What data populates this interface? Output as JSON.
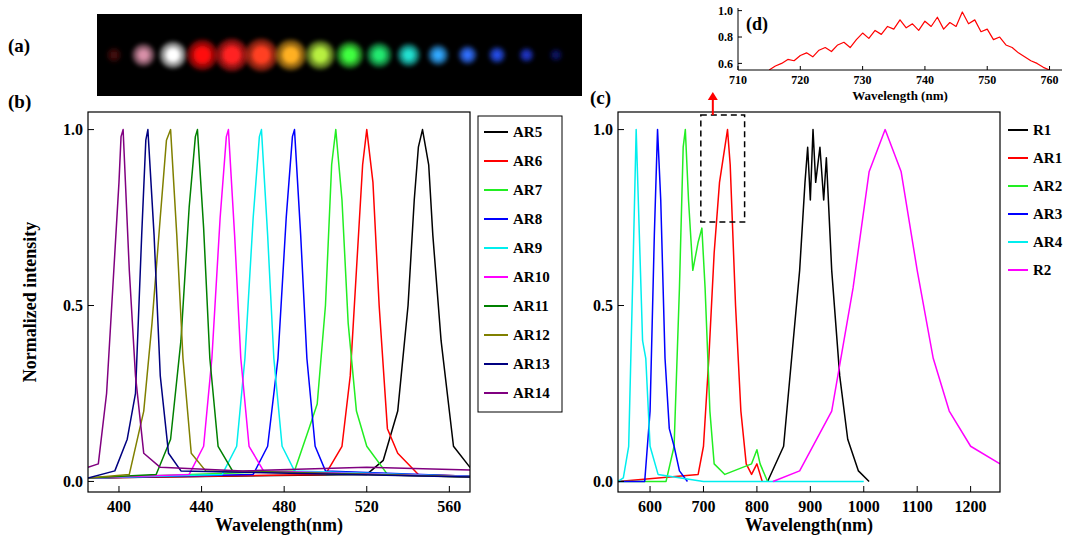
{
  "image": {
    "panel_label": "(a)",
    "colors": [
      "#4a1010",
      "#d890a8",
      "#ffffff",
      "#ff1010",
      "#ff2020",
      "#ff4020",
      "#ffb020",
      "#b8f040",
      "#40ff40",
      "#20e870",
      "#20e0d0",
      "#30a8ff",
      "#3070ff",
      "#2850f0",
      "#2038d0",
      "#101870"
    ]
  },
  "chart_data": [
    {
      "type": "line",
      "panel_label": "(b)",
      "xlabel": "Wavelength(nm)",
      "ylabel": "Normalized intensity",
      "xlim": [
        385,
        570
      ],
      "xticks": [
        400,
        440,
        480,
        520,
        560
      ],
      "ylim": [
        -0.03,
        1.05
      ],
      "yticks": [
        {
          "value": 0,
          "label": "0.0"
        },
        {
          "value": 0.5,
          "label": "0.5"
        },
        {
          "value": 1,
          "label": "1.0"
        }
      ],
      "legend": "right",
      "series": [
        {
          "name": "AR5",
          "color": "#000000",
          "x": [
            385,
            520,
            528,
            535,
            540,
            543,
            545,
            547,
            550,
            552,
            556,
            562,
            570,
            590
          ],
          "values": [
            0.01,
            0.02,
            0.06,
            0.2,
            0.5,
            0.8,
            0.95,
            1.0,
            0.9,
            0.7,
            0.4,
            0.1,
            0.04,
            0.01
          ]
        },
        {
          "name": "AR6",
          "color": "#ff0000",
          "x": [
            385,
            500,
            508,
            512,
            515,
            518,
            520,
            523,
            526,
            530,
            535,
            545,
            590
          ],
          "values": [
            0.01,
            0.02,
            0.1,
            0.3,
            0.6,
            0.9,
            1.0,
            0.85,
            0.5,
            0.15,
            0.08,
            0.02,
            0.01
          ]
        },
        {
          "name": "AR7",
          "color": "#22ee22",
          "x": [
            385,
            485,
            492,
            496,
            500,
            503,
            505,
            508,
            511,
            515,
            520,
            530,
            590
          ],
          "values": [
            0.01,
            0.03,
            0.15,
            0.22,
            0.5,
            0.9,
            1.0,
            0.8,
            0.45,
            0.2,
            0.1,
            0.02,
            0.01
          ]
        },
        {
          "name": "AR8",
          "color": "#0000ff",
          "x": [
            385,
            465,
            472,
            477,
            481,
            484,
            485,
            488,
            491,
            495,
            500,
            590
          ],
          "values": [
            0.01,
            0.02,
            0.1,
            0.35,
            0.75,
            0.98,
            1.0,
            0.7,
            0.35,
            0.1,
            0.03,
            0.01
          ]
        },
        {
          "name": "AR9",
          "color": "#00eeee",
          "x": [
            385,
            450,
            457,
            461,
            465,
            468,
            469,
            472,
            475,
            479,
            485,
            590
          ],
          "values": [
            0.01,
            0.02,
            0.1,
            0.35,
            0.75,
            0.98,
            1.0,
            0.7,
            0.35,
            0.1,
            0.03,
            0.01
          ]
        },
        {
          "name": "AR10",
          "color": "#ff00ff",
          "x": [
            385,
            434,
            441,
            445,
            449,
            452,
            453,
            456,
            459,
            463,
            470,
            590
          ],
          "values": [
            0.01,
            0.02,
            0.1,
            0.35,
            0.75,
            0.98,
            1.0,
            0.7,
            0.35,
            0.1,
            0.03,
            0.01
          ]
        },
        {
          "name": "AR11",
          "color": "#008000",
          "x": [
            385,
            418,
            425,
            430,
            434,
            437,
            438,
            441,
            444,
            448,
            455,
            590
          ],
          "values": [
            0.01,
            0.02,
            0.12,
            0.4,
            0.78,
            0.98,
            1.0,
            0.72,
            0.35,
            0.1,
            0.03,
            0.01
          ]
        },
        {
          "name": "AR12",
          "color": "#808000",
          "x": [
            385,
            405,
            412,
            416,
            420,
            423,
            425,
            428,
            431,
            435,
            442,
            590
          ],
          "values": [
            0.01,
            0.02,
            0.2,
            0.45,
            0.75,
            0.97,
            1.0,
            0.7,
            0.35,
            0.08,
            0.03,
            0.01
          ]
        },
        {
          "name": "AR13",
          "color": "#000080",
          "x": [
            385,
            398,
            404,
            408,
            411,
            413,
            414,
            417,
            420,
            424,
            430,
            590
          ],
          "values": [
            0.01,
            0.03,
            0.12,
            0.25,
            0.7,
            0.97,
            1.0,
            0.7,
            0.3,
            0.08,
            0.03,
            0.01
          ]
        },
        {
          "name": "AR14",
          "color": "#800080",
          "x": [
            385,
            390,
            394,
            397,
            400,
            401,
            402,
            405,
            408,
            412,
            420,
            460,
            520,
            590
          ],
          "values": [
            0.04,
            0.05,
            0.25,
            0.55,
            0.85,
            0.98,
            1.0,
            0.6,
            0.3,
            0.08,
            0.04,
            0.03,
            0.04,
            0.03
          ]
        }
      ]
    },
    {
      "type": "line",
      "panel_label": "(c)",
      "xlabel": "Wavelength(nm)",
      "xlim": [
        540,
        1255
      ],
      "xticks": [
        600,
        700,
        800,
        900,
        1000,
        1100,
        1200
      ],
      "ylim": [
        -0.03,
        1.05
      ],
      "yticks": [
        {
          "value": 0,
          "label": "0.0"
        },
        {
          "value": 0.5,
          "label": "0.5"
        },
        {
          "value": 1,
          "label": "1.0"
        }
      ],
      "legend": "right",
      "series": [
        {
          "name": "R1",
          "color": "#000000",
          "x": [
            820,
            850,
            865,
            880,
            890,
            895,
            900,
            905,
            910,
            918,
            925,
            930,
            940,
            955,
            970,
            990,
            1010
          ],
          "values": [
            0,
            0.1,
            0.35,
            0.6,
            0.85,
            0.95,
            0.8,
            1.0,
            0.85,
            0.95,
            0.8,
            0.92,
            0.6,
            0.3,
            0.12,
            0.03,
            0
          ]
        },
        {
          "name": "AR1",
          "color": "#ff0000",
          "x": [
            540,
            690,
            700,
            710,
            720,
            730,
            740,
            745,
            750,
            760,
            770,
            780,
            790,
            800,
            810
          ],
          "values": [
            0,
            0.02,
            0.1,
            0.35,
            0.65,
            0.85,
            0.95,
            1.0,
            0.9,
            0.5,
            0.2,
            0.05,
            0.02,
            0.05,
            0
          ]
        },
        {
          "name": "AR2",
          "color": "#22ee22",
          "x": [
            540,
            630,
            645,
            655,
            662,
            666,
            672,
            680,
            690,
            697,
            703,
            712,
            720,
            740,
            790,
            800,
            806,
            820
          ],
          "values": [
            0,
            0,
            0.1,
            0.55,
            0.95,
            1.0,
            0.8,
            0.6,
            0.68,
            0.72,
            0.55,
            0.2,
            0.05,
            0.02,
            0.05,
            0.09,
            0.05,
            0
          ]
        },
        {
          "name": "AR3",
          "color": "#0000ff",
          "x": [
            540,
            590,
            600,
            608,
            614,
            620,
            628,
            636,
            645,
            655,
            670
          ],
          "values": [
            0,
            0,
            0.2,
            0.7,
            1.0,
            0.8,
            0.35,
            0.15,
            0.1,
            0.03,
            0
          ]
        },
        {
          "name": "AR4",
          "color": "#00eeee",
          "x": [
            540,
            550,
            560,
            568,
            574,
            580,
            586,
            592,
            600,
            615,
            700,
            1000
          ],
          "values": [
            0,
            0.01,
            0.1,
            0.6,
            1.0,
            0.7,
            0.4,
            0.35,
            0.1,
            0.02,
            0,
            0
          ]
        },
        {
          "name": "R2",
          "color": "#ff00ff",
          "x": [
            830,
            880,
            940,
            980,
            1010,
            1040,
            1070,
            1100,
            1130,
            1160,
            1200,
            1255
          ],
          "values": [
            0,
            0.03,
            0.2,
            0.55,
            0.88,
            1.0,
            0.88,
            0.6,
            0.35,
            0.2,
            0.1,
            0.05
          ]
        }
      ]
    },
    {
      "type": "line",
      "panel_label": "(d)",
      "xlabel": "Wavelength (nm)",
      "xlim": [
        710,
        762
      ],
      "xticks": [
        710,
        720,
        730,
        740,
        750,
        760
      ],
      "ylim": [
        0.55,
        1.02
      ],
      "yticks": [
        0.6,
        0.8,
        {
          "value": 1,
          "label": "1.0"
        }
      ],
      "series": [
        {
          "color": "#ff0000",
          "x": [
            715,
            716,
            717,
            718,
            719,
            720,
            721,
            722,
            723,
            724,
            725,
            726,
            727,
            728,
            729,
            730,
            731,
            732,
            733,
            734,
            735,
            736,
            737,
            738,
            739,
            740,
            741,
            742,
            743,
            744,
            745,
            746,
            747,
            748,
            749,
            750,
            751,
            752,
            753,
            754,
            755,
            756,
            757,
            758,
            759,
            760
          ],
          "values": [
            0.55,
            0.58,
            0.6,
            0.63,
            0.62,
            0.66,
            0.68,
            0.65,
            0.7,
            0.72,
            0.69,
            0.74,
            0.76,
            0.72,
            0.78,
            0.83,
            0.79,
            0.85,
            0.82,
            0.88,
            0.86,
            0.93,
            0.87,
            0.9,
            0.85,
            0.92,
            0.88,
            0.95,
            0.86,
            0.91,
            0.88,
            0.99,
            0.9,
            0.93,
            0.84,
            0.86,
            0.78,
            0.8,
            0.74,
            0.72,
            0.68,
            0.65,
            0.62,
            0.6,
            0.57,
            0.55
          ]
        }
      ]
    }
  ]
}
